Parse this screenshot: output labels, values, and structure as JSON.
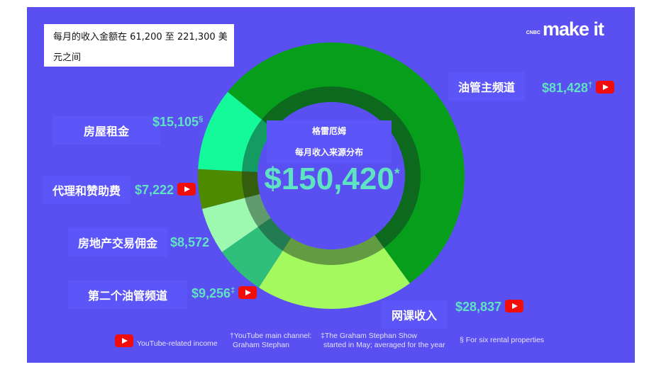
{
  "note": "每月的收入金额在 61,200 至 221,300 美元之间",
  "logo": {
    "brand": "CNBC",
    "text": "make it"
  },
  "center": {
    "name": "格雷厄姆",
    "subtitle": "每月收入来源分布",
    "total": "$150,420",
    "total_mark": "*"
  },
  "colors": {
    "background": "#5a4ff0",
    "amount": "#5fe3c2",
    "youtube": "#f20d0d"
  },
  "segments": [
    {
      "label": "油管主频道",
      "amount": "$81,428",
      "value": 81428,
      "mark": "†",
      "youtube": true,
      "color": "#079e1c"
    },
    {
      "label": "网课收入",
      "amount": "$28,837",
      "value": 28837,
      "mark": "",
      "youtube": true,
      "color": "#a3f95e"
    },
    {
      "label": "第二个油管频道",
      "amount": "$9,256",
      "value": 9256,
      "mark": "‡",
      "youtube": true,
      "color": "#2fbf7a"
    },
    {
      "label": "房地产交易佣金",
      "amount": "$8,572",
      "value": 8572,
      "mark": "",
      "youtube": false,
      "color": "#9ef9b0"
    },
    {
      "label": "代理和赞助费",
      "amount": "$7,222",
      "value": 7222,
      "mark": "",
      "youtube": true,
      "color": "#4e8a00"
    },
    {
      "label": "房屋租金",
      "amount": "$15,105",
      "value": 15105,
      "mark": "§",
      "youtube": false,
      "color": "#14f99a"
    }
  ],
  "footer": {
    "youtube_legend": "YouTube-related income",
    "dagger": "†YouTube main channel:",
    "dagger2": "Graham Stephan",
    "ddagger": "‡The Graham Stephan Show",
    "ddagger2": "started in May; averaged for the year",
    "section": "§ For six rental properties"
  }
}
